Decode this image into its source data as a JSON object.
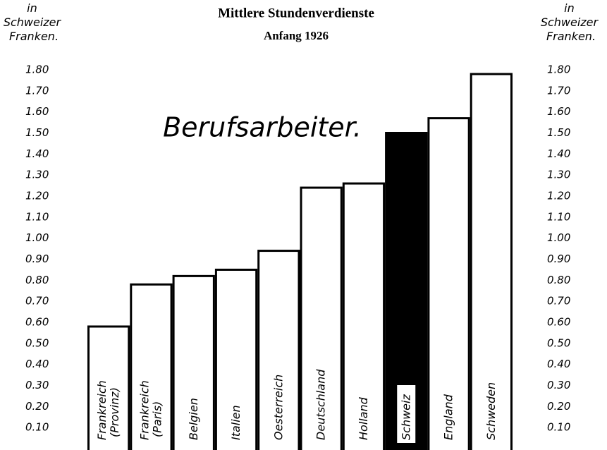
{
  "chart_data": {
    "type": "bar",
    "title": "Mittlere Stundenverdienste",
    "subtitle": "Anfang 1926",
    "annotation": "Berufsarbeiter.",
    "ylabel": "in Schweizer Franken.",
    "y2label": "in Schweizer Franken.",
    "categories": [
      "Frankreich (Provinz)",
      "Frankreich (Paris)",
      "Belgien",
      "Italien",
      "Oesterreich",
      "Deutschland",
      "Holland",
      "Schweiz",
      "England",
      "Schweden"
    ],
    "values": [
      0.58,
      0.78,
      0.82,
      0.85,
      0.94,
      1.24,
      1.26,
      1.5,
      1.57,
      1.78
    ],
    "colors": [
      "#ffffff",
      "#ffffff",
      "#ffffff",
      "#ffffff",
      "#ffffff",
      "#ffffff",
      "#ffffff",
      "#000000",
      "#ffffff",
      "#ffffff"
    ],
    "ylim": [
      0,
      1.8
    ],
    "yticks": [
      {
        "value": 0.1,
        "label": "0.10"
      },
      {
        "value": 0.2,
        "label": "0.20"
      },
      {
        "value": 0.3,
        "label": "0.30"
      },
      {
        "value": 0.4,
        "label": "0.40"
      },
      {
        "value": 0.5,
        "label": "0.50"
      },
      {
        "value": 0.6,
        "label": "0.60"
      },
      {
        "value": 0.7,
        "label": "0.70"
      },
      {
        "value": 0.8,
        "label": "0.80"
      },
      {
        "value": 0.9,
        "label": "0.90"
      },
      {
        "value": 1,
        "label": "1.00"
      },
      {
        "value": 1.1,
        "label": "1.10"
      },
      {
        "value": 1.2,
        "label": "1.20"
      },
      {
        "value": 1.3,
        "label": "1.30"
      },
      {
        "value": 1.4,
        "label": "1.40"
      },
      {
        "value": 1.5,
        "label": "1.50"
      },
      {
        "value": 1.6,
        "label": "1.60"
      },
      {
        "value": 1.7,
        "label": "1.70"
      },
      {
        "value": 1.8,
        "label": "1.80"
      }
    ],
    "y2lim": [
      0,
      1.8
    ],
    "y2ticks": [
      {
        "value": 0.1,
        "label": "0.10"
      },
      {
        "value": 0.2,
        "label": "0.20"
      },
      {
        "value": 0.3,
        "label": "0.30"
      },
      {
        "value": 0.4,
        "label": "0.40"
      },
      {
        "value": 0.5,
        "label": "0.50"
      },
      {
        "value": 0.6,
        "label": "0.60"
      },
      {
        "value": 0.7,
        "label": "0.70"
      },
      {
        "value": 0.8,
        "label": "0.80"
      },
      {
        "value": 0.9,
        "label": "0.90"
      },
      {
        "value": 1,
        "label": "1.00"
      },
      {
        "value": 1.1,
        "label": "1.10"
      },
      {
        "value": 1.2,
        "label": "1.20"
      },
      {
        "value": 1.3,
        "label": "1.30"
      },
      {
        "value": 1.4,
        "label": "1.40"
      },
      {
        "value": 1.5,
        "label": "1.50"
      },
      {
        "value": 1.6,
        "label": "1.60"
      },
      {
        "value": 1.7,
        "label": "1.70"
      },
      {
        "value": 1.8,
        "label": "1.80"
      }
    ],
    "grid": false
  }
}
